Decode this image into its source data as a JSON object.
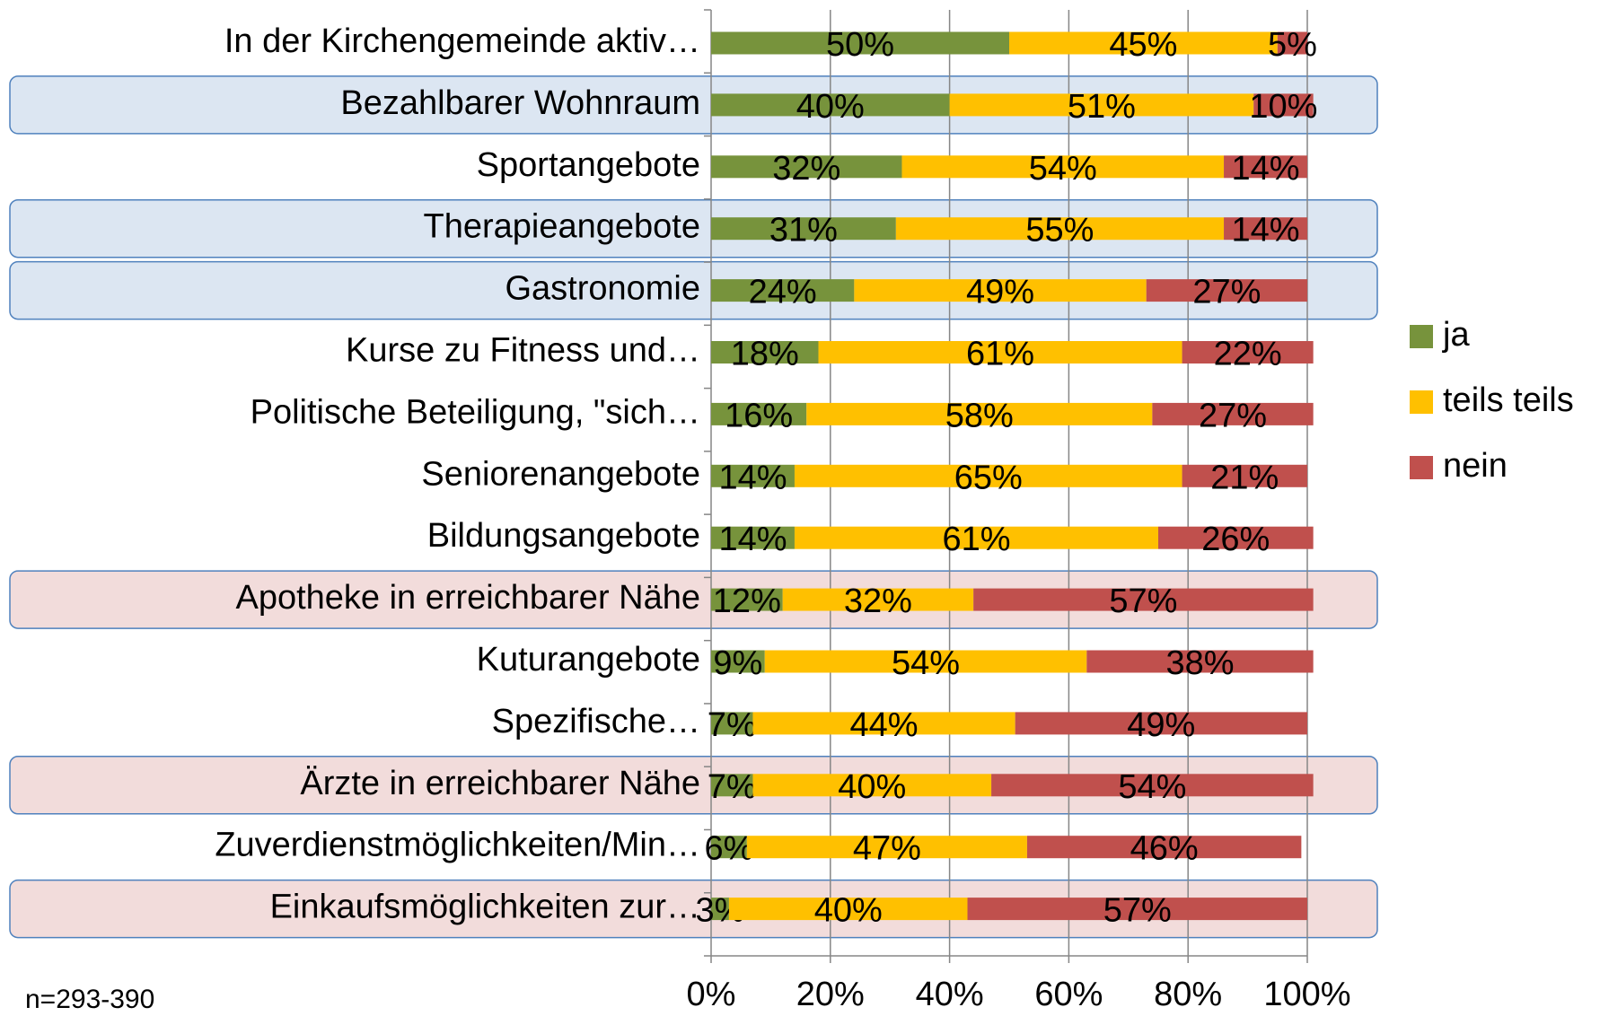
{
  "chart_data": {
    "type": "stacked-bar-horizontal",
    "categories": [
      "In der Kirchengemeinde aktiv…",
      "Bezahlbarer Wohnraum",
      "Sportangebote",
      "Therapieangebote",
      "Gastronomie",
      "Kurse zu Fitness und…",
      "Politische Beteiligung, \"sich…",
      "Seniorenangebote",
      "Bildungsangebote",
      "Apotheke in erreichbarer Nähe",
      "Kuturangebote",
      "Spezifische…",
      "Ärzte in erreichbarer Nähe",
      "Zuverdienstmöglichkeiten/Min…",
      "Einkaufsmöglichkeiten zur…"
    ],
    "series": [
      {
        "name": "ja",
        "color": "#77933c",
        "values": [
          50,
          40,
          32,
          31,
          24,
          18,
          16,
          14,
          14,
          12,
          9,
          7,
          7,
          6,
          3
        ],
        "value_labels": [
          "50%",
          "40%",
          "32%",
          "31%",
          "24%",
          "18%",
          "16%",
          "14%",
          "14%",
          "12%",
          "9%",
          "7%",
          "7%",
          "6%",
          "3%"
        ]
      },
      {
        "name": "teils teils",
        "color": "#ffc000",
        "values": [
          45,
          51,
          54,
          55,
          49,
          61,
          58,
          65,
          61,
          32,
          54,
          44,
          40,
          47,
          40
        ],
        "value_labels": [
          "45%",
          "51%",
          "54%",
          "55%",
          "49%",
          "61%",
          "58%",
          "65%",
          "61%",
          "32%",
          "54%",
          "44%",
          "40%",
          "47%",
          "40%"
        ]
      },
      {
        "name": "nein",
        "color": "#c0504d",
        "values": [
          5,
          10,
          14,
          14,
          27,
          22,
          27,
          21,
          26,
          57,
          38,
          49,
          54,
          46,
          57
        ],
        "value_labels": [
          "5%",
          "10%",
          "14%",
          "14%",
          "27%",
          "22%",
          "27%",
          "21%",
          "26%",
          "57%",
          "38%",
          "49%",
          "54%",
          "46%",
          "57%"
        ]
      }
    ],
    "xlim": [
      0,
      100
    ],
    "xticks": [
      {
        "value": 0,
        "label": "0%"
      },
      {
        "value": 20,
        "label": "20%"
      },
      {
        "value": 40,
        "label": "40%"
      },
      {
        "value": 60,
        "label": "60%"
      },
      {
        "value": 80,
        "label": "80%"
      },
      {
        "value": 100,
        "label": "100%"
      }
    ],
    "grid": true,
    "legend": "right",
    "annotation": "n=293-390"
  }
}
